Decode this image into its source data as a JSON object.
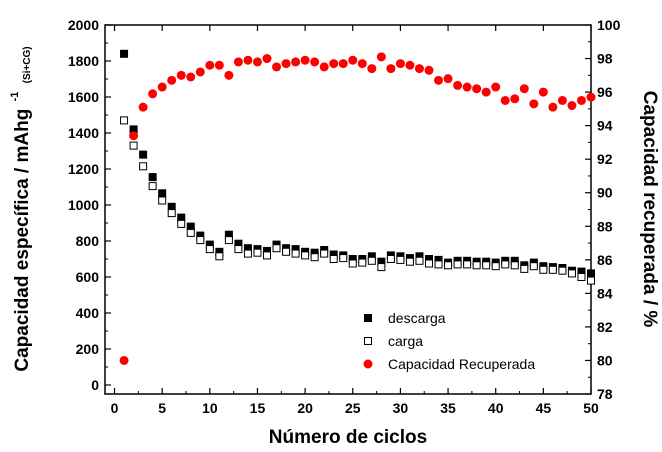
{
  "chart_data": {
    "type": "scatter",
    "xlabel": "Número de ciclos",
    "ylabel_left": "Capacidad específica / mAhg",
    "ylabel_left_sup": "-1",
    "ylabel_left_sub": "(Si+CG)",
    "ylabel_right": "Capacidad recuperada / %",
    "xlim": [
      -1,
      50
    ],
    "ylim_left": [
      -50,
      2000
    ],
    "ylim_right": [
      78,
      100
    ],
    "x_ticks": [
      0,
      5,
      10,
      15,
      20,
      25,
      30,
      35,
      40,
      45,
      50
    ],
    "y_left_ticks": [
      0,
      200,
      400,
      600,
      800,
      1000,
      1200,
      1400,
      1600,
      1800,
      2000
    ],
    "y_right_ticks": [
      78,
      80,
      82,
      84,
      86,
      88,
      90,
      92,
      94,
      96,
      98,
      100
    ],
    "legend_position": "bottom-right",
    "series": [
      {
        "name": "descarga",
        "axis": "left",
        "marker": "filled-square",
        "color": "#000000",
        "x": [
          1,
          2,
          3,
          4,
          5,
          6,
          7,
          8,
          9,
          10,
          11,
          12,
          13,
          14,
          15,
          16,
          17,
          18,
          19,
          20,
          21,
          22,
          23,
          24,
          25,
          26,
          27,
          28,
          29,
          30,
          31,
          32,
          33,
          34,
          35,
          36,
          37,
          38,
          39,
          40,
          41,
          42,
          43,
          44,
          45,
          46,
          47,
          48,
          49,
          50
        ],
        "y": [
          1840,
          1420,
          1280,
          1155,
          1065,
          990,
          930,
          880,
          830,
          780,
          740,
          835,
          785,
          760,
          755,
          745,
          780,
          760,
          755,
          740,
          735,
          750,
          725,
          720,
          700,
          700,
          715,
          685,
          720,
          715,
          705,
          715,
          700,
          695,
          680,
          690,
          690,
          685,
          685,
          680,
          690,
          690,
          665,
          680,
          660,
          655,
          650,
          635,
          630,
          620
        ]
      },
      {
        "name": "carga",
        "axis": "left",
        "marker": "open-square",
        "color": "#000000",
        "x": [
          1,
          2,
          3,
          4,
          5,
          6,
          7,
          8,
          9,
          10,
          11,
          12,
          13,
          14,
          15,
          16,
          17,
          18,
          19,
          20,
          21,
          22,
          23,
          24,
          25,
          26,
          27,
          28,
          29,
          30,
          31,
          32,
          33,
          34,
          35,
          36,
          37,
          38,
          39,
          40,
          41,
          42,
          43,
          44,
          45,
          46,
          47,
          48,
          49,
          50
        ],
        "y": [
          1470,
          1330,
          1215,
          1105,
          1025,
          955,
          895,
          845,
          805,
          755,
          715,
          805,
          755,
          730,
          735,
          720,
          760,
          740,
          730,
          720,
          710,
          730,
          700,
          705,
          675,
          680,
          690,
          655,
          700,
          695,
          685,
          690,
          675,
          670,
          665,
          670,
          670,
          665,
          665,
          660,
          670,
          665,
          645,
          660,
          640,
          640,
          635,
          620,
          600,
          580
        ]
      },
      {
        "name": "Capacidad Recuperada",
        "axis": "right",
        "marker": "filled-circle",
        "color": "#ff0000",
        "x": [
          1,
          2,
          3,
          4,
          5,
          6,
          7,
          8,
          9,
          10,
          11,
          12,
          13,
          14,
          15,
          16,
          17,
          18,
          19,
          20,
          21,
          22,
          23,
          24,
          25,
          26,
          27,
          28,
          29,
          30,
          31,
          32,
          33,
          34,
          35,
          36,
          37,
          38,
          39,
          40,
          41,
          42,
          43,
          44,
          45,
          46,
          47,
          48,
          49,
          50
        ],
        "y": [
          80,
          93.4,
          95.1,
          95.9,
          96.3,
          96.7,
          97.0,
          96.9,
          97.2,
          97.6,
          97.6,
          97.0,
          97.8,
          97.9,
          97.8,
          98.0,
          97.5,
          97.7,
          97.8,
          97.9,
          97.8,
          97.5,
          97.7,
          97.7,
          97.9,
          97.7,
          97.4,
          98.1,
          97.4,
          97.7,
          97.6,
          97.4,
          97.3,
          96.7,
          96.8,
          96.4,
          96.3,
          96.2,
          96.0,
          96.3,
          95.5,
          95.6,
          96.2,
          95.3,
          96.0,
          95.1,
          95.5,
          95.2,
          95.5,
          95.7
        ]
      }
    ]
  }
}
